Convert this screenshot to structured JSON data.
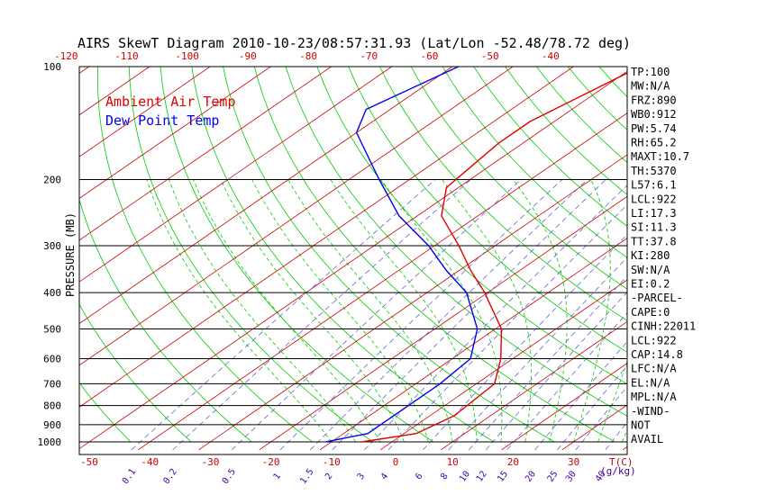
{
  "chart_data": {
    "type": "skew-t",
    "title": "AIRS SkewT Diagram 2010-10-23/08:57:31.93 (Lat/Lon -52.48/78.72 deg)",
    "ylabel": "PRESSURE (MB)",
    "y_scale": "log",
    "ylim": [
      1000,
      100
    ],
    "pressure_ticks": [
      "100",
      "200",
      "300",
      "400",
      "500",
      "600",
      "700",
      "800",
      "900",
      "1000"
    ],
    "bottom_temp_ticks": [
      "-50",
      "-40",
      "-30",
      "-20",
      "-10",
      "0",
      "10",
      "20",
      "30"
    ],
    "bottom_temp_unit": "T(C)",
    "top_temp_ticks": [
      "-120",
      "-110",
      "-100",
      "-90",
      "-80",
      "-70",
      "-60",
      "-50",
      "-40"
    ],
    "mixing_ratio_ticks": [
      "0.1",
      "0.2",
      "0.5",
      "1",
      "1.5",
      "2",
      "3",
      "4",
      "6",
      "8",
      "10",
      "12",
      "15",
      "20",
      "25",
      "30",
      "40"
    ],
    "mixing_ratio_unit": "(g/kg)",
    "legend": [
      {
        "label": "Ambient Air Temp",
        "color": "#e00000"
      },
      {
        "label": "Dew Point Temp",
        "color": "#0000ee"
      }
    ],
    "series": [
      {
        "name": "Ambient Air Temp",
        "color": "#e00000",
        "points": [
          [
            1000,
            -5
          ],
          [
            950,
            2
          ],
          [
            850,
            4
          ],
          [
            700,
            3
          ],
          [
            600,
            -2
          ],
          [
            500,
            -9
          ],
          [
            420,
            -18
          ],
          [
            400,
            -20.5
          ],
          [
            350,
            -28
          ],
          [
            300,
            -36
          ],
          [
            250,
            -46
          ],
          [
            210,
            -52
          ],
          [
            160,
            -54
          ],
          [
            140,
            -54
          ],
          [
            100,
            -49
          ]
        ]
      },
      {
        "name": "Dew Point Temp",
        "color": "#0000ee",
        "points": [
          [
            1000,
            -11
          ],
          [
            950,
            -6
          ],
          [
            850,
            -6
          ],
          [
            700,
            -6
          ],
          [
            600,
            -7
          ],
          [
            500,
            -13
          ],
          [
            400,
            -23.5
          ],
          [
            350,
            -32
          ],
          [
            300,
            -41
          ],
          [
            250,
            -53
          ],
          [
            200,
            -65
          ],
          [
            150,
            -80
          ],
          [
            130,
            -84
          ],
          [
            100,
            -79
          ]
        ]
      }
    ],
    "grid_lines": {
      "isobars": true,
      "isotherms": true,
      "dry_adiabats": true,
      "moist_adiabats": true,
      "mixing_ratio": true
    },
    "colors": {
      "isotherms": "#cc0000",
      "dry_adiabats": "#00cc00",
      "moist_adiabats": "#00cc00",
      "mixing_ratio": "#6666cc",
      "isobars": "#000000",
      "axes_labels": "#cc0000",
      "mixing_labels": "#4400aa"
    },
    "indices": [
      "TP:100",
      "MW:N/A",
      "FRZ:890",
      "WB0:912",
      "PW:5.74",
      "RH:65.2",
      "MAXT:10.7",
      "TH:5370",
      "L57:6.1",
      "LCL:922",
      "LI:17.3",
      "SI:11.3",
      "TT:37.8",
      "KI:280",
      "SW:N/A",
      "EI:0.2",
      "-PARCEL-",
      "CAPE:0",
      "CINH:22011",
      "LCL:922",
      "CAP:14.8",
      "LFC:N/A",
      "EL:N/A",
      "MPL:N/A",
      "-WIND-",
      "NOT",
      "AVAIL"
    ]
  }
}
